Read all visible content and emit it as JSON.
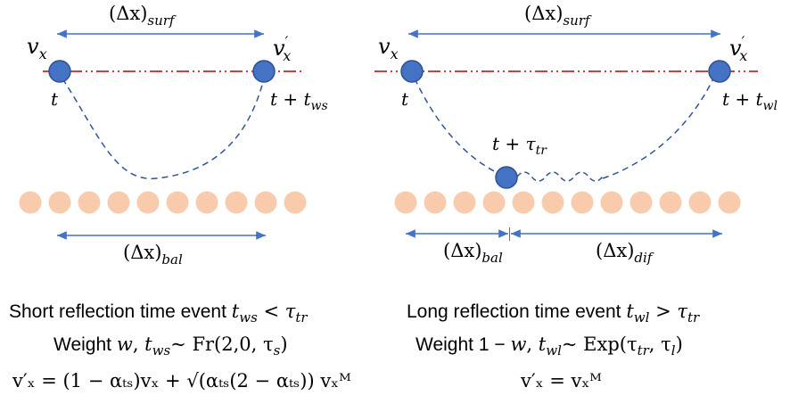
{
  "colors": {
    "molecule": "#4472c4",
    "molecule_stroke": "#2f528f",
    "surface_atom": "#f8cbad",
    "surface_line": "#c00000",
    "arrow": "#4472c4",
    "trajectory": "#2f5597"
  },
  "left": {
    "dx_surf": {
      "base": "(Δx)",
      "sub": "surf"
    },
    "v_in": {
      "base": "v",
      "sub": "x"
    },
    "v_out": {
      "base": "v",
      "prime": "′",
      "sub": "x"
    },
    "t_start": "t",
    "t_end": {
      "base": "t + t",
      "sub": "ws"
    },
    "dx_bal": {
      "base": "(Δx)",
      "sub": "bal"
    },
    "caption": {
      "title_text": "Short reflection time event ",
      "title_math": {
        "t": "t",
        "t_sub": "ws",
        "op": " < ",
        "tau": "τ",
        "tau_sub": "tr"
      },
      "weight_text": "Weight ",
      "weight_math": {
        "w": "w",
        "comma": ",  ",
        "t": "t",
        "t_sub": "ws",
        "dist": "~ Fr(2,0, τ",
        "dist_sub": "s",
        "close": ")"
      },
      "eq": "v′ₓ = (1 − αₜₛ)vₓ + √(αₜₛ(2 − αₜₛ)) vₓᴹ"
    }
  },
  "right": {
    "dx_surf": {
      "base": "(Δx)",
      "sub": "surf"
    },
    "v_in": {
      "base": "v",
      "sub": "x"
    },
    "v_out": {
      "base": "v",
      "prime": "′",
      "sub": "x"
    },
    "t_start": "t",
    "t_mid": {
      "base": "t + τ",
      "sub": "tr"
    },
    "t_end": {
      "base": "t + t",
      "sub": "wl"
    },
    "dx_bal": {
      "base": "(Δx)",
      "sub": "bal"
    },
    "dx_dif": {
      "base": "(Δx)",
      "sub": "dif"
    },
    "caption": {
      "title_text": "Long reflection time event ",
      "title_math": {
        "t": "t",
        "t_sub": "wl",
        "op": " > ",
        "tau": "τ",
        "tau_sub": "tr"
      },
      "weight_text": "Weight 1 − ",
      "weight_math": {
        "w": "w",
        "comma": ",  ",
        "t": "t",
        "t_sub": "wl",
        "dist": "~ Exp(τ",
        "dist_sub": "tr",
        "mid": ", τ",
        "dist_sub2": "l",
        "close": ")"
      },
      "eq": "v′ₓ = vₓᴹ"
    }
  }
}
